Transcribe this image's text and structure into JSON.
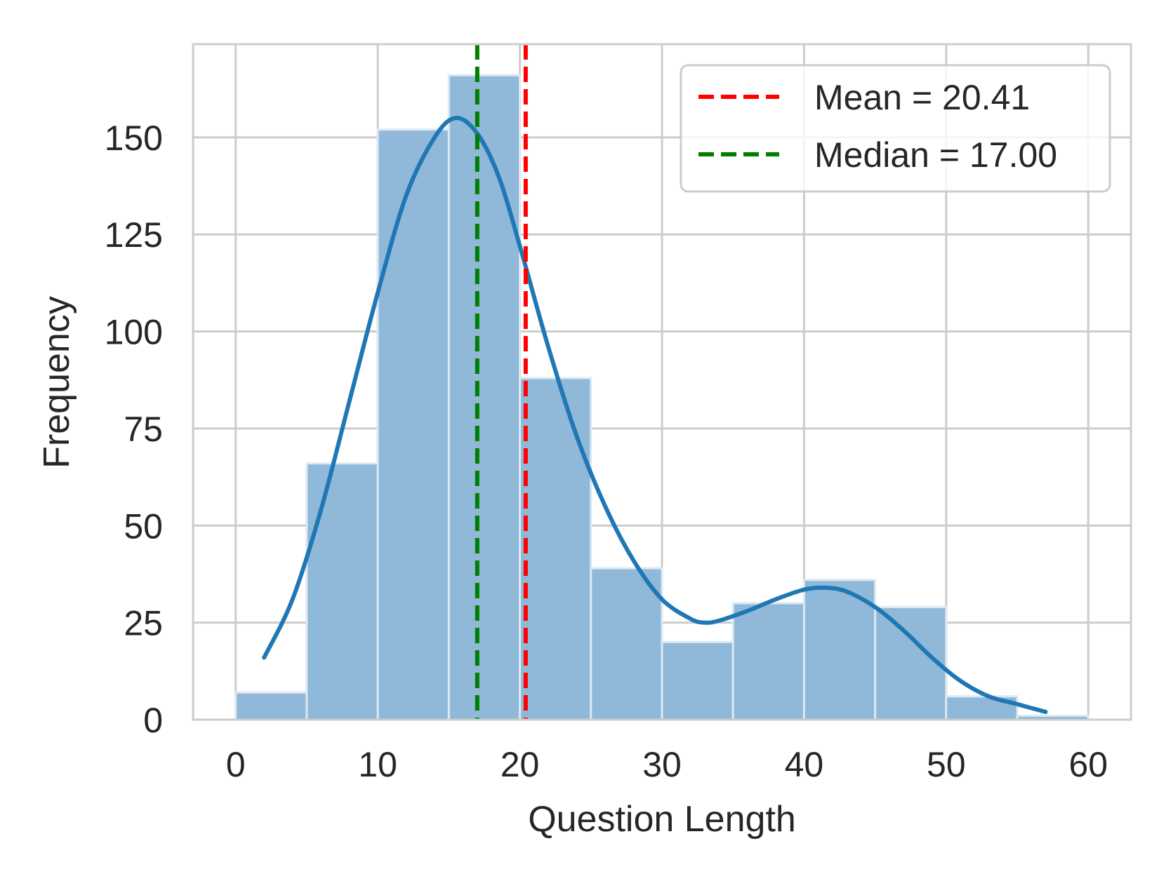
{
  "chart_data": {
    "type": "bar",
    "title": "",
    "xlabel": "Question Length",
    "ylabel": "Frequency",
    "xlim": [
      -3,
      63
    ],
    "ylim": [
      0,
      174
    ],
    "grid": true,
    "x_ticks": [
      0,
      10,
      20,
      30,
      40,
      50,
      60
    ],
    "y_ticks": [
      0,
      25,
      50,
      75,
      100,
      125,
      150
    ],
    "bins": [
      {
        "start": 0,
        "end": 5,
        "count": 7
      },
      {
        "start": 5,
        "end": 10,
        "count": 66
      },
      {
        "start": 10,
        "end": 15,
        "count": 152
      },
      {
        "start": 15,
        "end": 20,
        "count": 166
      },
      {
        "start": 20,
        "end": 25,
        "count": 88
      },
      {
        "start": 25,
        "end": 30,
        "count": 39
      },
      {
        "start": 30,
        "end": 35,
        "count": 20
      },
      {
        "start": 35,
        "end": 40,
        "count": 30
      },
      {
        "start": 40,
        "end": 45,
        "count": 36
      },
      {
        "start": 45,
        "end": 50,
        "count": 29
      },
      {
        "start": 50,
        "end": 55,
        "count": 6
      },
      {
        "start": 55,
        "end": 60,
        "count": 1
      }
    ],
    "kde": {
      "x": [
        2,
        4,
        6,
        8,
        10,
        12,
        14,
        15.5,
        17,
        18.5,
        20,
        22,
        24,
        26,
        28,
        30,
        32,
        33,
        34,
        36,
        38,
        40,
        41.5,
        43,
        45,
        47,
        49,
        51,
        53,
        55,
        57
      ],
      "y": [
        16,
        31,
        54,
        82,
        110,
        135,
        150,
        155,
        151,
        140,
        122,
        96,
        73,
        55,
        41,
        31,
        26,
        25,
        25.5,
        28,
        31,
        33.5,
        34,
        33,
        29,
        23,
        16,
        10,
        6,
        4,
        2
      ]
    },
    "reference_lines": [
      {
        "name": "Mean = 20.41",
        "x": 20.41,
        "color": "#ff0000",
        "style": "dashed"
      },
      {
        "name": "Median = 17.00",
        "x": 17.0,
        "color": "#008000",
        "style": "dashed"
      }
    ],
    "legend_position": "top-right",
    "colors": {
      "bar_fill": "#8fb8d9",
      "bar_edge": "#dce8f3",
      "kde_line": "#1f77b4",
      "grid": "#cccccc",
      "axes_edge": "#cccccc"
    }
  }
}
